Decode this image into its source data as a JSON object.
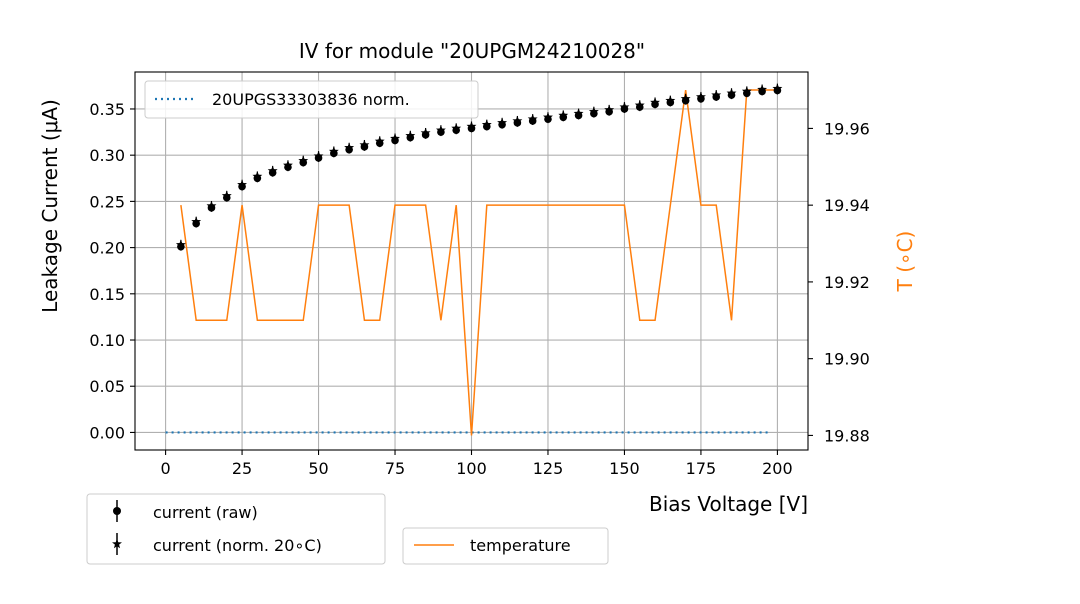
{
  "chart_data": {
    "type": "scatter",
    "title": "IV for module \"20UPGM24210028\"",
    "xlabel": "Bias Voltage [V]",
    "ylabel": "Leakage Current (μA)",
    "y2label": "T (∘C)",
    "xlim": [
      -10,
      210
    ],
    "ylim": [
      -0.019,
      0.39
    ],
    "y2lim": [
      19.8762,
      19.9747
    ],
    "xticks": [
      0,
      25,
      50,
      75,
      100,
      125,
      150,
      175,
      200
    ],
    "yticks": [
      0.0,
      0.05,
      0.1,
      0.15,
      0.2,
      0.25,
      0.3,
      0.35
    ],
    "y2ticks": [
      19.88,
      19.9,
      19.92,
      19.94,
      19.96
    ],
    "grid": true,
    "colors": {
      "current": "#000000",
      "temperature": "#ff7f0e",
      "reference": "#1f77b4",
      "y2label": "#ff7f0e"
    },
    "x": [
      5,
      10,
      15,
      20,
      25,
      30,
      35,
      40,
      45,
      50,
      55,
      60,
      65,
      70,
      75,
      80,
      85,
      90,
      95,
      100,
      105,
      110,
      115,
      120,
      125,
      130,
      135,
      140,
      145,
      150,
      155,
      160,
      165,
      170,
      175,
      180,
      185,
      190,
      195,
      200
    ],
    "series": [
      {
        "name": "20UPGS33303836 norm.",
        "style": "dotted-line",
        "axis": "left",
        "x": [
          0,
          198
        ],
        "values": [
          0.0,
          0.0
        ]
      },
      {
        "name": "current (raw)",
        "style": "circle-errorbar",
        "axis": "left",
        "values": [
          0.201,
          0.226,
          0.243,
          0.254,
          0.266,
          0.275,
          0.281,
          0.287,
          0.292,
          0.297,
          0.302,
          0.306,
          0.309,
          0.313,
          0.316,
          0.319,
          0.322,
          0.325,
          0.327,
          0.329,
          0.331,
          0.333,
          0.335,
          0.337,
          0.339,
          0.341,
          0.343,
          0.345,
          0.347,
          0.35,
          0.352,
          0.355,
          0.357,
          0.359,
          0.361,
          0.363,
          0.365,
          0.367,
          0.369,
          0.37
        ]
      },
      {
        "name": "current (norm. 20∘C)",
        "style": "star-errorbar",
        "axis": "left",
        "values": [
          0.203,
          0.228,
          0.245,
          0.256,
          0.268,
          0.277,
          0.283,
          0.289,
          0.294,
          0.299,
          0.304,
          0.308,
          0.311,
          0.315,
          0.318,
          0.321,
          0.324,
          0.327,
          0.329,
          0.331,
          0.333,
          0.335,
          0.337,
          0.339,
          0.341,
          0.343,
          0.345,
          0.347,
          0.349,
          0.352,
          0.354,
          0.357,
          0.359,
          0.361,
          0.363,
          0.365,
          0.367,
          0.369,
          0.371,
          0.372
        ]
      },
      {
        "name": "temperature",
        "style": "line",
        "axis": "right",
        "values": [
          19.94,
          19.91,
          19.91,
          19.91,
          19.94,
          19.91,
          19.91,
          19.91,
          19.91,
          19.94,
          19.94,
          19.94,
          19.91,
          19.91,
          19.94,
          19.94,
          19.94,
          19.91,
          19.94,
          19.88,
          19.94,
          19.94,
          19.94,
          19.94,
          19.94,
          19.94,
          19.94,
          19.94,
          19.94,
          19.94,
          19.91,
          19.91,
          19.94,
          19.97,
          19.94,
          19.94,
          19.91,
          19.97,
          19.97,
          19.97
        ]
      }
    ],
    "legends": [
      {
        "placement": "upper-left",
        "entries": [
          "20UPGS33303836 norm."
        ]
      },
      {
        "placement": "below-left",
        "entries": [
          "current (raw)",
          "current (norm. 20∘C)"
        ]
      },
      {
        "placement": "below-center",
        "entries": [
          "temperature"
        ]
      }
    ]
  }
}
